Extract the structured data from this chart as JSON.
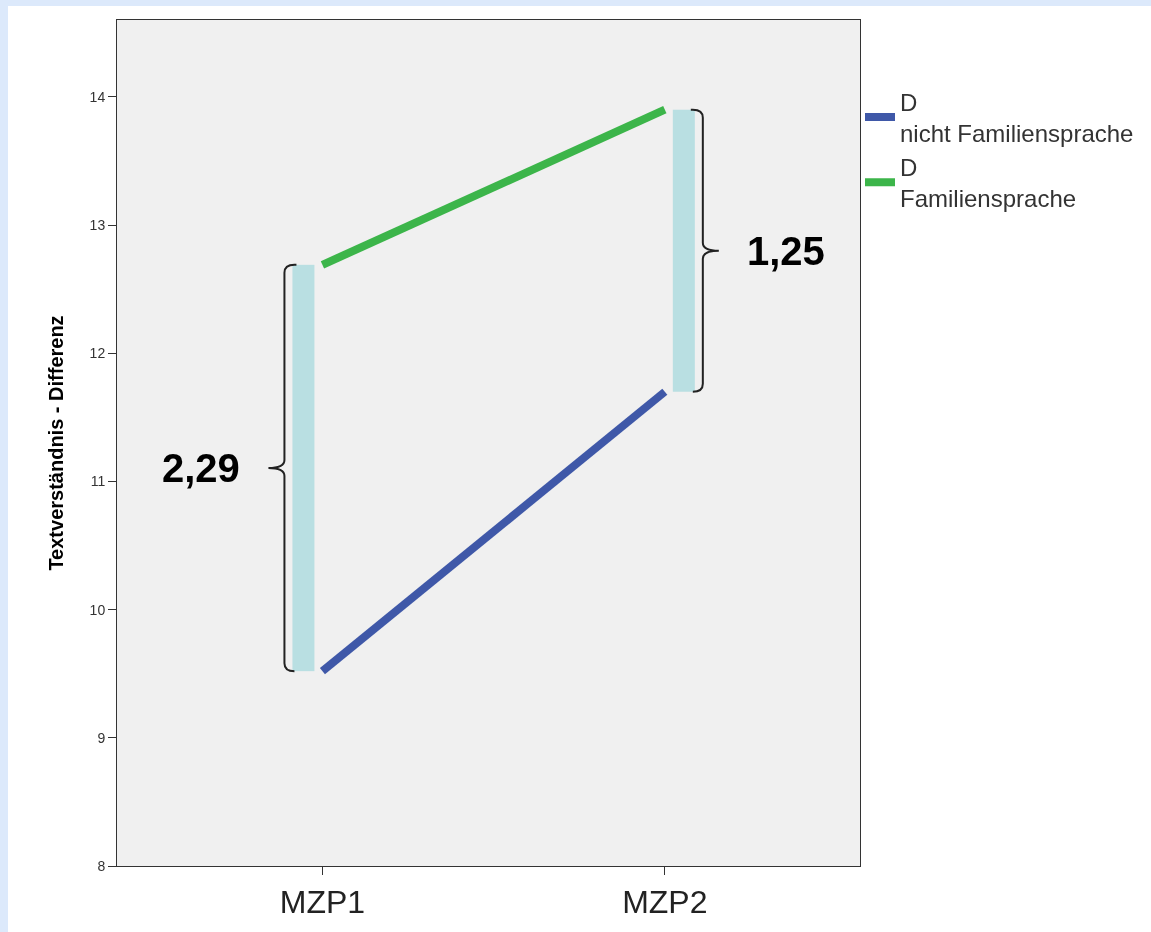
{
  "chart_data": {
    "type": "line",
    "ylabel": "Textverständnis - Differenz",
    "categories": [
      "MZP1",
      "MZP2"
    ],
    "series": [
      {
        "name": "D nicht Familiensprache",
        "color": "#3f58a8",
        "values": [
          9.52,
          11.7
        ]
      },
      {
        "name": "D Familiensprache",
        "color": "#3cb54a",
        "values": [
          12.69,
          13.9
        ]
      }
    ],
    "ylim": [
      8,
      14.6
    ],
    "yticks": [
      8,
      9,
      10,
      11,
      12,
      13,
      14
    ],
    "grid": false,
    "legend": "top right",
    "marker": "none",
    "line_style": "solid",
    "annotations": [
      "2,29",
      "1,25"
    ]
  }
}
